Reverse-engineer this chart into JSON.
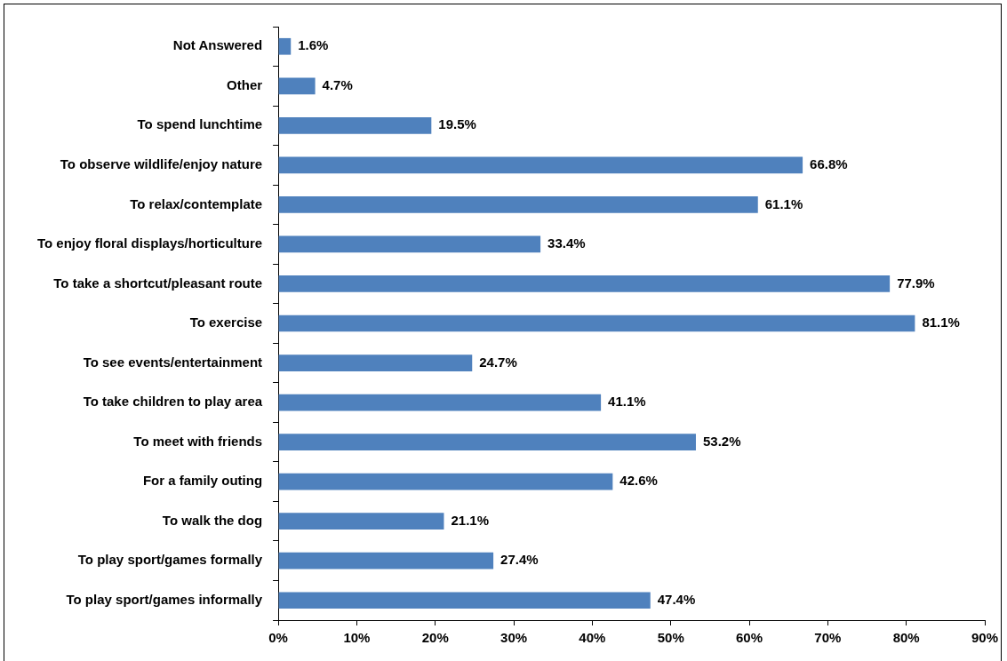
{
  "chart_data": {
    "type": "bar",
    "orientation": "horizontal",
    "categories": [
      "Not Answered",
      "Other",
      "To spend lunchtime",
      "To observe wildlife/enjoy nature",
      "To relax/contemplate",
      "To enjoy floral displays/horticulture",
      "To take a shortcut/pleasant route",
      "To exercise",
      "To see events/entertainment",
      "To take children to play area",
      "To meet with friends",
      "For a family outing",
      "To walk the dog",
      "To play sport/games formally",
      "To play sport/games informally"
    ],
    "values": [
      1.6,
      4.7,
      19.5,
      66.8,
      61.1,
      33.4,
      77.9,
      81.1,
      24.7,
      41.1,
      53.2,
      42.6,
      21.1,
      27.4,
      47.4
    ],
    "value_labels": [
      "1.6%",
      "4.7%",
      "19.5%",
      "66.8%",
      "61.1%",
      "33.4%",
      "77.9%",
      "81.1%",
      "24.7%",
      "41.1%",
      "53.2%",
      "42.6%",
      "21.1%",
      "27.4%",
      "47.4%"
    ],
    "color": "#4f81bd",
    "xlim": [
      0,
      90
    ],
    "xticks": [
      {
        "value": 0,
        "label": "0%"
      },
      {
        "value": 10,
        "label": "10%"
      },
      {
        "value": 20,
        "label": "20%"
      },
      {
        "value": 30,
        "label": "30%"
      },
      {
        "value": 40,
        "label": "40%"
      },
      {
        "value": 50,
        "label": "50%"
      },
      {
        "value": 60,
        "label": "60%"
      },
      {
        "value": 70,
        "label": "70%"
      },
      {
        "value": 80,
        "label": "80%"
      },
      {
        "value": 90,
        "label": "90%"
      }
    ],
    "legend": false
  }
}
